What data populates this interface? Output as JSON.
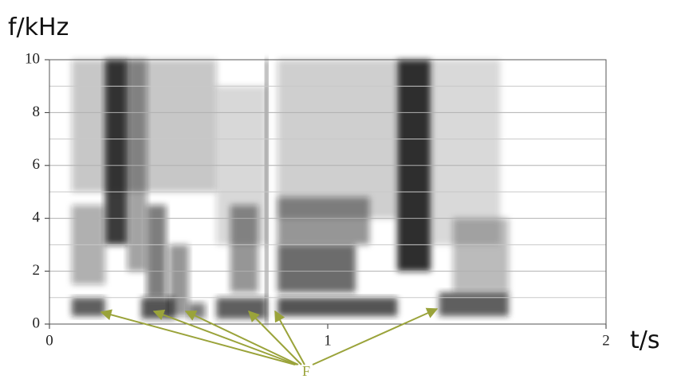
{
  "chart_data": {
    "type": "spectrogram",
    "y_label": "f/kHz",
    "x_label": "t/s",
    "annotation": "F",
    "xlim": [
      0,
      2
    ],
    "xticks": [
      0,
      1,
      2
    ],
    "ylim": [
      0,
      10
    ],
    "yticks": [
      0,
      2,
      4,
      6,
      8,
      10
    ],
    "minor_yticks": [
      1,
      3,
      5,
      7,
      9
    ],
    "grid": true,
    "color": "#1a1a1a",
    "regions": [
      {
        "x": [
          0.08,
          0.6
        ],
        "y": [
          5,
          10
        ],
        "intensity": 0.25
      },
      {
        "x": [
          0.6,
          0.78
        ],
        "y": [
          3,
          9
        ],
        "intensity": 0.18
      },
      {
        "x": [
          0.82,
          1.25
        ],
        "y": [
          4,
          10
        ],
        "intensity": 0.22
      },
      {
        "x": [
          1.37,
          1.62
        ],
        "y": [
          3,
          10
        ],
        "intensity": 0.15
      },
      {
        "x": [
          0.08,
          0.2
        ],
        "y": [
          0.3,
          1
        ],
        "intensity": 0.7
      },
      {
        "x": [
          0.08,
          0.2
        ],
        "y": [
          1.5,
          4.5
        ],
        "intensity": 0.35
      },
      {
        "x": [
          0.2,
          0.28
        ],
        "y": [
          3,
          10
        ],
        "intensity": 0.85
      },
      {
        "x": [
          0.28,
          0.35
        ],
        "y": [
          2,
          10
        ],
        "intensity": 0.4
      },
      {
        "x": [
          0.33,
          0.45
        ],
        "y": [
          0.2,
          1
        ],
        "intensity": 0.75
      },
      {
        "x": [
          0.35,
          0.42
        ],
        "y": [
          1,
          4.5
        ],
        "intensity": 0.55
      },
      {
        "x": [
          0.43,
          0.5
        ],
        "y": [
          0.3,
          3
        ],
        "intensity": 0.45
      },
      {
        "x": [
          0.5,
          0.56
        ],
        "y": [
          0.2,
          0.8
        ],
        "intensity": 0.55
      },
      {
        "x": [
          0.6,
          0.78
        ],
        "y": [
          0.2,
          1
        ],
        "intensity": 0.7
      },
      {
        "x": [
          0.65,
          0.75
        ],
        "y": [
          1.2,
          4.5
        ],
        "intensity": 0.45
      },
      {
        "x": [
          0.775,
          0.785
        ],
        "y": [
          0,
          10
        ],
        "intensity": 0.8
      },
      {
        "x": [
          0.82,
          1.25
        ],
        "y": [
          0.3,
          1
        ],
        "intensity": 0.75
      },
      {
        "x": [
          0.82,
          1.1
        ],
        "y": [
          1.2,
          3
        ],
        "intensity": 0.65
      },
      {
        "x": [
          0.82,
          1.15
        ],
        "y": [
          3,
          4.8
        ],
        "intensity": 0.45
      },
      {
        "x": [
          1.25,
          1.37
        ],
        "y": [
          2,
          10
        ],
        "intensity": 0.9
      },
      {
        "x": [
          1.4,
          1.65
        ],
        "y": [
          0.3,
          1.2
        ],
        "intensity": 0.7
      },
      {
        "x": [
          1.45,
          1.65
        ],
        "y": [
          1.2,
          4
        ],
        "intensity": 0.3
      }
    ]
  }
}
